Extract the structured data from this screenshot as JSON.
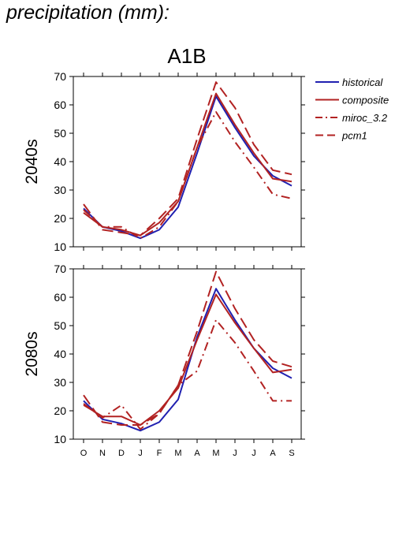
{
  "heading": "precipitation (mm):",
  "chart_data": {
    "type": "line",
    "title": "A1B",
    "categories": [
      "O",
      "N",
      "D",
      "J",
      "F",
      "M",
      "A",
      "M",
      "J",
      "J",
      "A",
      "S"
    ],
    "ylim": [
      10,
      70
    ],
    "yticks": [
      10,
      20,
      30,
      40,
      50,
      60,
      70
    ],
    "legend_position": "right",
    "legend": [
      {
        "name": "historical",
        "color": "#2020b0",
        "style": "solid"
      },
      {
        "name": "composite",
        "color": "#b22222",
        "style": "solid"
      },
      {
        "name": "miroc_3.2",
        "color": "#b22222",
        "style": "dashdot"
      },
      {
        "name": "pcm1",
        "color": "#b22222",
        "style": "dashed"
      }
    ],
    "panels": [
      {
        "label": "2040s",
        "series": [
          {
            "name": "historical",
            "values": [
              23.5,
              17,
              15.5,
              13,
              16,
              24,
              43,
              63,
              52,
              42,
              35,
              31.5
            ]
          },
          {
            "name": "composite",
            "values": [
              22,
              17,
              16,
              14,
              18.5,
              26,
              45,
              64,
              53,
              43,
              34,
              33
            ]
          },
          {
            "name": "miroc_3.2",
            "values": [
              23,
              17,
              17,
              13,
              17,
              26,
              45,
              57.5,
              47,
              38,
              28.5,
              27
            ]
          },
          {
            "name": "pcm1",
            "values": [
              25,
              16,
              15,
              14,
              20,
              27,
              48,
              68,
              59,
              46,
              37,
              35.5
            ]
          }
        ]
      },
      {
        "label": "2080s",
        "series": [
          {
            "name": "historical",
            "values": [
              23.5,
              17,
              15.5,
              13,
              16,
              24,
              46,
              63,
              52,
              42,
              35,
              31.5
            ]
          },
          {
            "name": "composite",
            "values": [
              22,
              18,
              18,
              15,
              20,
              28,
              45,
              61,
              51,
              42,
              33.5,
              34.5
            ]
          },
          {
            "name": "miroc_3.2",
            "values": [
              22.5,
              17.5,
              22,
              13.5,
              19,
              29,
              34,
              52,
              44,
              34,
              23.5,
              23.5
            ]
          },
          {
            "name": "pcm1",
            "values": [
              25.5,
              16,
              15,
              15,
              19,
              29,
              48,
              69,
              56,
              45,
              37.5,
              35.5
            ]
          }
        ]
      }
    ]
  }
}
